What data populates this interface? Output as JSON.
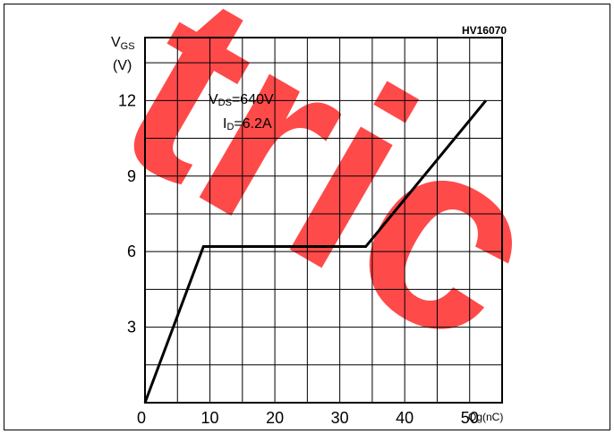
{
  "chart_data": {
    "type": "line",
    "figure_code": "HV16070",
    "xlabel": "Qg(nC)",
    "ylabel_main": "V",
    "ylabel_sub": "GS",
    "ylabel_unit": "(V)",
    "xlim": [
      0,
      55
    ],
    "ylim": [
      0,
      14.5
    ],
    "grid": true,
    "x_ticks": [
      0,
      10,
      20,
      30,
      40,
      50
    ],
    "x_tick_labels": [
      "0",
      "10",
      "20",
      "30",
      "40",
      "50"
    ],
    "y_ticks": [
      3,
      6,
      9,
      12
    ],
    "y_tick_labels": [
      "3",
      "6",
      "9",
      "12"
    ],
    "series": [
      {
        "x": [
          0,
          9,
          34,
          52.5
        ],
        "y": [
          0,
          6.2,
          6.2,
          12
        ]
      }
    ],
    "annotations": {
      "vds_main": "V",
      "vds_sub": "DS",
      "vds_value": "=640V",
      "id_main": "I",
      "id_sub": "D",
      "id_value": "=6.2A"
    },
    "watermark": "tric",
    "colors": {
      "line": "#000000",
      "grid": "#000000",
      "watermark": "#ff2a2a"
    }
  }
}
